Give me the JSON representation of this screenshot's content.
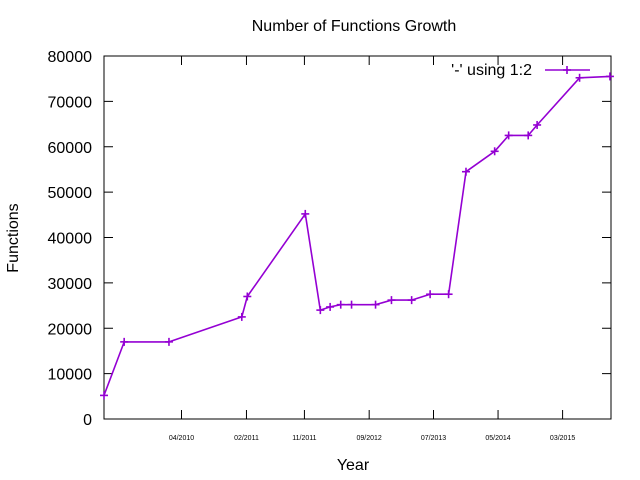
{
  "chart_data": {
    "type": "line",
    "title": "Number of Functions Growth",
    "xlabel": "Year",
    "ylabel": "Functions",
    "ylim": [
      0,
      80000
    ],
    "yticks": [
      0,
      10000,
      20000,
      30000,
      40000,
      50000,
      60000,
      70000,
      80000
    ],
    "xlim": [
      "2009-04-01",
      "2015-10-15"
    ],
    "xticks": [
      {
        "label": "04/2010",
        "x": "2010-04-01"
      },
      {
        "label": "02/2011",
        "x": "2011-02-01"
      },
      {
        "label": "11/2011",
        "x": "2011-11-01"
      },
      {
        "label": "09/2012",
        "x": "2012-09-01"
      },
      {
        "label": "07/2013",
        "x": "2013-07-01"
      },
      {
        "label": "05/2014",
        "x": "2014-05-01"
      },
      {
        "label": "03/2015",
        "x": "2015-03-01"
      }
    ],
    "grid": false,
    "legend_position": "top-right",
    "series": [
      {
        "name": "'-' using 1:2",
        "color": "#9400d3",
        "x": [
          "2009-04-01",
          "2009-07-05",
          "2010-02-01",
          "2011-01-10",
          "2011-02-05",
          "2011-11-05",
          "2012-01-15",
          "2012-03-01",
          "2012-04-20",
          "2012-06-10",
          "2012-10-01",
          "2012-12-15",
          "2013-03-20",
          "2013-06-15",
          "2013-09-10",
          "2013-12-01",
          "2014-04-15",
          "2014-06-20",
          "2014-09-20",
          "2014-11-01",
          "2015-05-20",
          "2015-10-10"
        ],
        "y": [
          5200,
          17000,
          17000,
          22500,
          27000,
          45200,
          24000,
          24700,
          25200,
          25200,
          25200,
          26200,
          26200,
          27500,
          27500,
          54500,
          59000,
          62500,
          62500,
          64800,
          75200,
          75500
        ]
      }
    ]
  }
}
